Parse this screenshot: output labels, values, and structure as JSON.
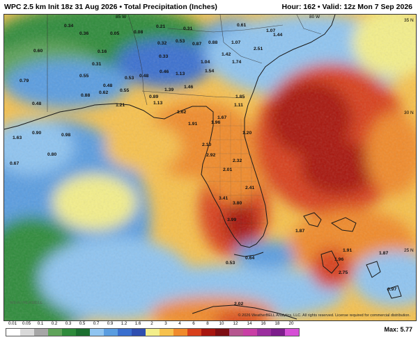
{
  "header": {
    "title": "WPC 2.5 km Init 18z 31 Aug 2026 • Total Precipitation (Inches)",
    "hour_valid": "Hour: 162 • Valid: 12z Mon 7 Sep 2026"
  },
  "map": {
    "colors": {
      "ocean_land_outline": "#222222",
      "light_blue": "#7fb2e5",
      "blue": "#3f7fd9",
      "green": "#2faa4a",
      "yellow": "#f5e26a",
      "orange": "#f29b36",
      "red": "#d62a1c",
      "dark_red": "#a0150f"
    },
    "lat_labels": [
      "35 N",
      "30 N",
      "25 N"
    ],
    "lon_labels": [
      "85 W",
      "80 W"
    ],
    "point_values": [
      {
        "v": "0.34"
      },
      {
        "v": "0.36"
      },
      {
        "v": "0.05"
      },
      {
        "v": "0.08"
      },
      {
        "v": "0.21"
      },
      {
        "v": "0.31"
      },
      {
        "v": "0.61"
      },
      {
        "v": "1.07"
      },
      {
        "v": "1.44"
      },
      {
        "v": "0.60"
      },
      {
        "v": "0.16"
      },
      {
        "v": "0.32"
      },
      {
        "v": "0.53"
      },
      {
        "v": "0.87"
      },
      {
        "v": "0.88"
      },
      {
        "v": "1.07"
      },
      {
        "v": "0.33"
      },
      {
        "v": "1.42"
      },
      {
        "v": "2.51"
      },
      {
        "v": "0.31"
      },
      {
        "v": "0.79"
      },
      {
        "v": "0.55"
      },
      {
        "v": "0.48"
      },
      {
        "v": "0.53"
      },
      {
        "v": "0.48"
      },
      {
        "v": "0.46"
      },
      {
        "v": "1.04"
      },
      {
        "v": "1.74"
      },
      {
        "v": "1.13"
      },
      {
        "v": "1.54"
      },
      {
        "v": "0.62"
      },
      {
        "v": "0.55"
      },
      {
        "v": "0.88"
      },
      {
        "v": "1.46"
      },
      {
        "v": "1.39"
      },
      {
        "v": "0.89"
      },
      {
        "v": "1.85"
      },
      {
        "v": "0.48"
      },
      {
        "v": "1.21"
      },
      {
        "v": "1.13"
      },
      {
        "v": "1.11"
      },
      {
        "v": "1.62"
      },
      {
        "v": "1.67"
      },
      {
        "v": "1.91"
      },
      {
        "v": "1.96"
      },
      {
        "v": "0.90"
      },
      {
        "v": "0.98"
      },
      {
        "v": "1.20"
      },
      {
        "v": "1.63"
      },
      {
        "v": "2.10"
      },
      {
        "v": "0.80"
      },
      {
        "v": "2.92"
      },
      {
        "v": "2.32"
      },
      {
        "v": "0.67"
      },
      {
        "v": "2.01"
      },
      {
        "v": "2.41"
      },
      {
        "v": "3.41"
      },
      {
        "v": "3.80"
      },
      {
        "v": "3.99"
      },
      {
        "v": "1.87"
      },
      {
        "v": "1.91"
      },
      {
        "v": "1.96"
      },
      {
        "v": "1.87"
      },
      {
        "v": "0.53"
      },
      {
        "v": "0.64"
      },
      {
        "v": "2.75"
      },
      {
        "v": "0.97"
      },
      {
        "v": "2.02"
      }
    ]
  },
  "legend": {
    "ticks": [
      "0.01",
      "0.05",
      "0.1",
      "0.2",
      "0.3",
      "0.5",
      "0.7",
      "0.9",
      "1.2",
      "1.6",
      "2",
      "3",
      "4",
      "6",
      "8",
      "10",
      "12",
      "14",
      "16",
      "18",
      "20"
    ],
    "colors": [
      "#ffffff",
      "#d9d9d9",
      "#a6a6a6",
      "#5fa35a",
      "#2e8b3b",
      "#1b6f2f",
      "#8fc4f0",
      "#5a9de0",
      "#3a6fcf",
      "#2f4fb0",
      "#f3ee8a",
      "#f6c14d",
      "#f08a2b",
      "#d8401c",
      "#a8150f",
      "#7d0d12",
      "#b6568f",
      "#c93fa5",
      "#9b2e9e",
      "#7d1e8c",
      "#d64fd6"
    ],
    "max_label": "Max: 5.77"
  },
  "copyright": "© 2026 WeatherBELL Analytics, LLC. All rights reserved. License required for commercial distribution.",
  "logo_text": "WEATHERBELL"
}
